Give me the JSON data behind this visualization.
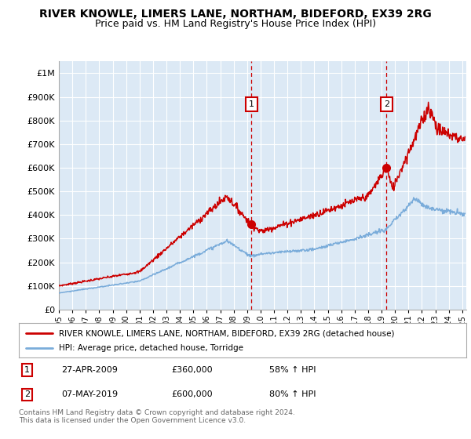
{
  "title": "RIVER KNOWLE, LIMERS LANE, NORTHAM, BIDEFORD, EX39 2RG",
  "subtitle": "Price paid vs. HM Land Registry's House Price Index (HPI)",
  "legend_label_red": "RIVER KNOWLE, LIMERS LANE, NORTHAM, BIDEFORD, EX39 2RG (detached house)",
  "legend_label_blue": "HPI: Average price, detached house, Torridge",
  "annotation1_date": "27-APR-2009",
  "annotation1_price": "£360,000",
  "annotation1_hpi": "58% ↑ HPI",
  "annotation2_date": "07-MAY-2019",
  "annotation2_price": "£600,000",
  "annotation2_hpi": "80% ↑ HPI",
  "footnote1": "Contains HM Land Registry data © Crown copyright and database right 2024.",
  "footnote2": "This data is licensed under the Open Government Licence v3.0.",
  "background_color": "#ffffff",
  "plot_background_color": "#dce9f5",
  "grid_color": "#ffffff",
  "red_color": "#cc0000",
  "blue_color": "#7aacda",
  "annotation_vline_color": "#cc0000",
  "ylim_min": 0,
  "ylim_max": 1050000,
  "xlim_min": 1995,
  "xlim_max": 2025.3,
  "sale1_year": 2009.32,
  "sale1_price": 360000,
  "sale2_year": 2019.37,
  "sale2_price": 600000
}
